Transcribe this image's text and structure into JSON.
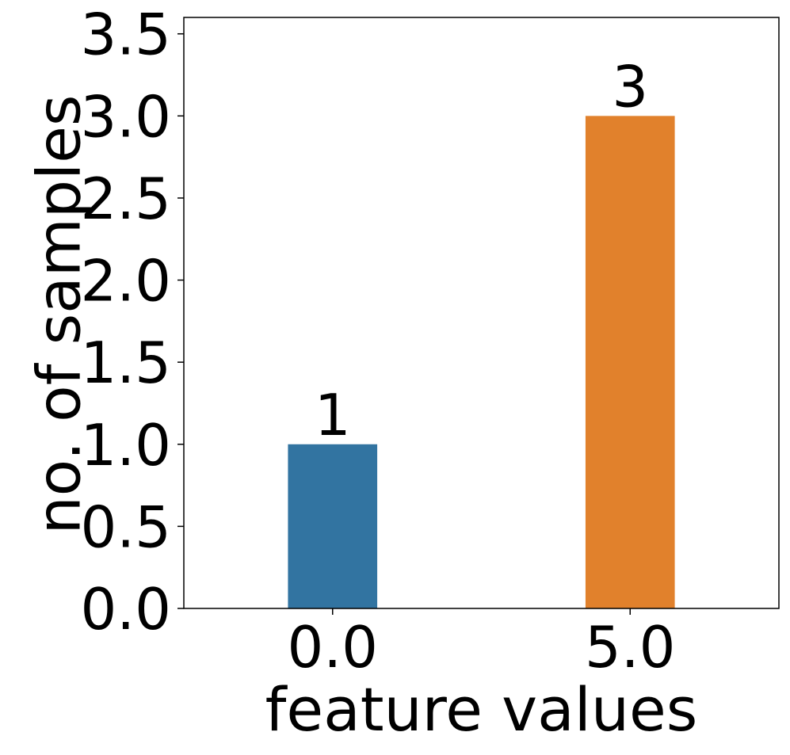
{
  "chart_data": {
    "type": "bar",
    "title": "",
    "xlabel": "feature values",
    "ylabel": "no. of samples",
    "categories": [
      "0.0",
      "5.0"
    ],
    "values": [
      1,
      3
    ],
    "data_labels": [
      "1",
      "3"
    ],
    "colors": [
      "#3274a1",
      "#e1812c"
    ],
    "ylim": [
      0,
      3.6
    ],
    "yticks": [
      0.0,
      0.5,
      1.0,
      1.5,
      2.0,
      2.5,
      3.0,
      3.5
    ],
    "ytick_labels": [
      "0.0",
      "0.5",
      "1.0",
      "1.5",
      "2.0",
      "2.5",
      "3.0",
      "3.5"
    ],
    "grid": false,
    "legend": "none"
  }
}
